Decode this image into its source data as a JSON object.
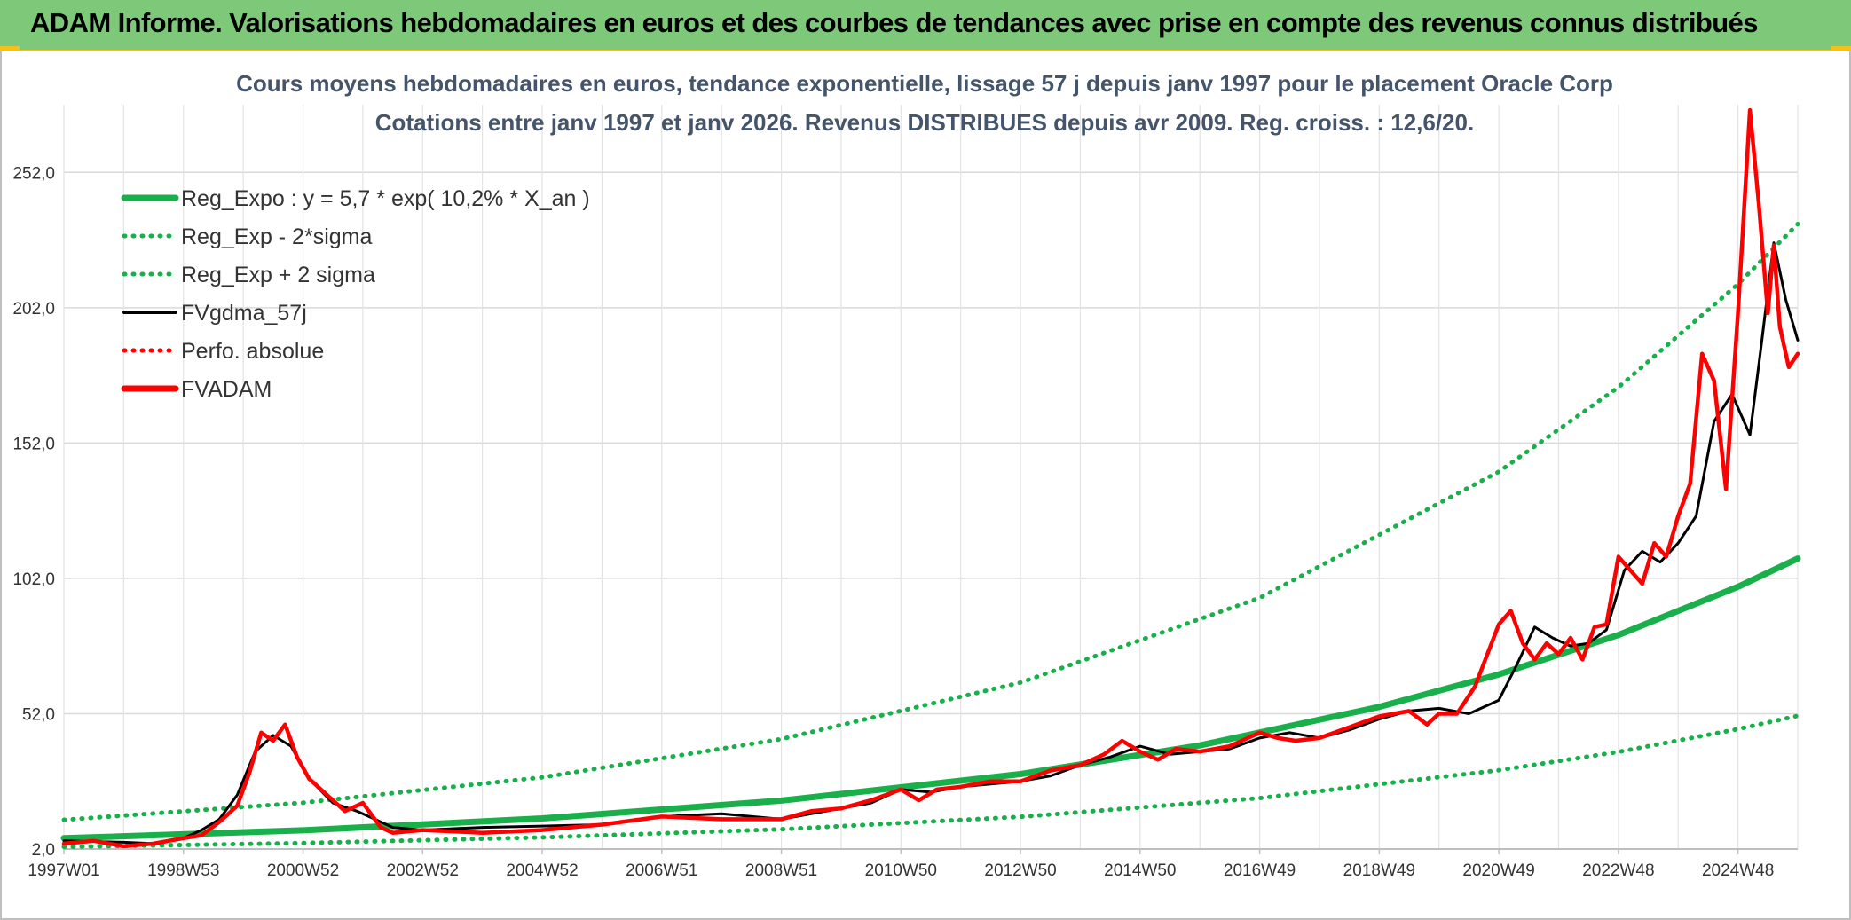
{
  "banner": {
    "title": "ADAM Informe. Valorisations hebdomadaires en euros et des courbes de tendances avec prise en compte des revenus connus distribués"
  },
  "colors": {
    "banner_bg": "#7dc879",
    "accent": "#f2c21b",
    "reg": "#19b04b",
    "fvgdma": "#000000",
    "fvadam": "#ff0000"
  },
  "chart_data": {
    "type": "line",
    "title": "Cours moyens hebdomadaires en euros, tendance exponentielle, lissage 57 j depuis janv 1997 pour le placement Oracle Corp",
    "subtitle": "Cotations entre janv 1997 et janv 2026. Revenus DISTRIBUES depuis avr 2009. Reg. croiss. : 12,6/20.",
    "xlabel": "",
    "ylabel": "",
    "x_range": [
      1997.0,
      2026.0
    ],
    "ylim": [
      2.0,
      277.0
    ],
    "y_ticks": [
      "2,0",
      "52,0",
      "102,0",
      "152,0",
      "202,0",
      "252,0"
    ],
    "y_tick_values": [
      2,
      52,
      102,
      152,
      202,
      252
    ],
    "x_ticks": [
      "1997W01",
      "1998W53",
      "2000W52",
      "2002W52",
      "2004W52",
      "2006W51",
      "2008W51",
      "2010W50",
      "2012W50",
      "2014W50",
      "2016W49",
      "2018W49",
      "2020W49",
      "2022W48",
      "2024W48"
    ],
    "x_tick_values": [
      1997.0,
      1999.0,
      2001.0,
      2003.0,
      2005.0,
      2007.0,
      2009.0,
      2011.0,
      2013.0,
      2015.0,
      2017.0,
      2019.0,
      2021.0,
      2023.0,
      2025.0
    ],
    "grid": true,
    "legend_position": "top-left",
    "series": [
      {
        "name": "Reg_Expo : y = 5,7 * exp( 10,2% *  X_an )",
        "style": "solid-thick",
        "color": "#19b04b",
        "x": [
          1997.0,
          2001.0,
          2005.0,
          2009.0,
          2013.0,
          2016.0,
          2019.0,
          2021.0,
          2023.0,
          2025.0,
          2026.0
        ],
        "values": [
          6.0,
          8.9,
          13.3,
          19.9,
          29.7,
          40.3,
          54.5,
          66.5,
          81.1,
          98.9,
          109.3
        ]
      },
      {
        "name": "Reg_Exp - 2*sigma",
        "style": "dotted",
        "color": "#19b04b",
        "x": [
          1997.0,
          2001.0,
          2005.0,
          2009.0,
          2013.0,
          2017.0,
          2021.0,
          2023.0,
          2025.0,
          2026.0
        ],
        "values": [
          2.8,
          4.2,
          6.3,
          9.3,
          13.9,
          20.8,
          31.1,
          37.9,
          46.3,
          51.2
        ]
      },
      {
        "name": "Reg_Exp + 2 sigma",
        "style": "dotted",
        "color": "#19b04b",
        "x": [
          1997.0,
          2001.0,
          2005.0,
          2009.0,
          2013.0,
          2017.0,
          2021.0,
          2023.0,
          2025.0,
          2026.0
        ],
        "values": [
          12.8,
          19.1,
          28.5,
          42.6,
          63.5,
          94.8,
          141.4,
          172.6,
          210.7,
          232.9
        ]
      },
      {
        "name": "FVgdma_57j",
        "style": "solid",
        "color": "#000000",
        "x": [
          1997.0,
          1998.0,
          1998.5,
          1999.0,
          1999.3,
          1999.6,
          1999.9,
          2000.2,
          2000.5,
          2000.8,
          2001.1,
          2001.5,
          2001.9,
          2002.2,
          2002.5,
          2003.0,
          2004.0,
          2005.0,
          2006.0,
          2007.0,
          2008.0,
          2009.0,
          2009.5,
          2010.0,
          2010.5,
          2011.0,
          2011.5,
          2012.0,
          2012.5,
          2013.0,
          2013.5,
          2014.0,
          2014.5,
          2015.0,
          2015.5,
          2016.0,
          2016.5,
          2017.0,
          2017.5,
          2018.0,
          2018.5,
          2019.0,
          2019.5,
          2020.0,
          2020.5,
          2021.0,
          2021.3,
          2021.6,
          2021.9,
          2022.2,
          2022.5,
          2022.8,
          2023.1,
          2023.4,
          2023.7,
          2024.0,
          2024.3,
          2024.6,
          2024.9,
          2025.2,
          2025.4,
          2025.6,
          2025.8,
          2026.0
        ],
        "values": [
          5.0,
          4.5,
          4.0,
          6.0,
          9.0,
          13.0,
          22.0,
          38.0,
          44.0,
          40.0,
          28.0,
          19.0,
          16.0,
          13.0,
          10.0,
          9.0,
          10.0,
          10.5,
          11.0,
          14.0,
          15.0,
          13.0,
          15.0,
          17.0,
          19.0,
          24.0,
          23.0,
          25.0,
          26.0,
          27.0,
          29.0,
          33.0,
          36.0,
          40.0,
          37.0,
          38.0,
          39.0,
          43.0,
          45.0,
          43.0,
          46.0,
          50.0,
          53.0,
          54.0,
          52.0,
          57.0,
          70.0,
          84.0,
          80.0,
          77.0,
          78.0,
          83.0,
          105.0,
          112.0,
          108.0,
          115.0,
          125.0,
          160.0,
          170.0,
          155.0,
          190.0,
          226.0,
          205.0,
          190.0
        ]
      },
      {
        "name": "Perfo. absolue",
        "style": "dotted",
        "color": "#ff0000",
        "x": [],
        "values": []
      },
      {
        "name": "FVADAM",
        "style": "solid-thick",
        "color": "#ff0000",
        "x": [
          1997.0,
          1997.5,
          1998.0,
          1998.5,
          1999.0,
          1999.3,
          1999.6,
          1999.9,
          2000.1,
          2000.3,
          2000.5,
          2000.7,
          2000.9,
          2001.1,
          2001.4,
          2001.7,
          2002.0,
          2002.3,
          2002.5,
          2003.0,
          2004.0,
          2005.0,
          2006.0,
          2007.0,
          2008.0,
          2009.0,
          2009.5,
          2010.0,
          2010.5,
          2011.0,
          2011.3,
          2011.6,
          2012.0,
          2012.5,
          2013.0,
          2013.5,
          2014.0,
          2014.4,
          2014.7,
          2015.0,
          2015.3,
          2015.6,
          2016.0,
          2016.5,
          2017.0,
          2017.3,
          2017.6,
          2018.0,
          2018.5,
          2019.0,
          2019.5,
          2019.8,
          2020.0,
          2020.3,
          2020.6,
          2021.0,
          2021.2,
          2021.4,
          2021.6,
          2021.8,
          2022.0,
          2022.2,
          2022.4,
          2022.6,
          2022.8,
          2023.0,
          2023.2,
          2023.4,
          2023.6,
          2023.8,
          2024.0,
          2024.2,
          2024.4,
          2024.6,
          2024.8,
          2025.0,
          2025.2,
          2025.35,
          2025.5,
          2025.6,
          2025.7,
          2025.85,
          2026.0
        ],
        "values": [
          4.0,
          5.0,
          3.0,
          4.0,
          6.0,
          7.0,
          12.0,
          18.0,
          30.0,
          45.0,
          42.0,
          48.0,
          36.0,
          28.0,
          22.0,
          16.0,
          19.0,
          10.0,
          8.0,
          9.0,
          8.0,
          9.0,
          11.0,
          14.0,
          13.0,
          13.0,
          16.0,
          17.0,
          20.0,
          24.0,
          20.0,
          24.0,
          25.0,
          27.0,
          27.0,
          31.0,
          33.0,
          37.0,
          42.0,
          38.0,
          35.0,
          39.0,
          38.0,
          40.0,
          45.0,
          43.0,
          42.0,
          43.0,
          47.0,
          51.0,
          53.0,
          48.0,
          52.0,
          52.0,
          62.0,
          85.0,
          90.0,
          78.0,
          72.0,
          78.0,
          74.0,
          80.0,
          72.0,
          84.0,
          85.0,
          110.0,
          105.0,
          100.0,
          115.0,
          110.0,
          125.0,
          137.0,
          185.0,
          175.0,
          135.0,
          200.0,
          275.0,
          240.0,
          200.0,
          225.0,
          195.0,
          180.0,
          185.0
        ]
      }
    ]
  }
}
